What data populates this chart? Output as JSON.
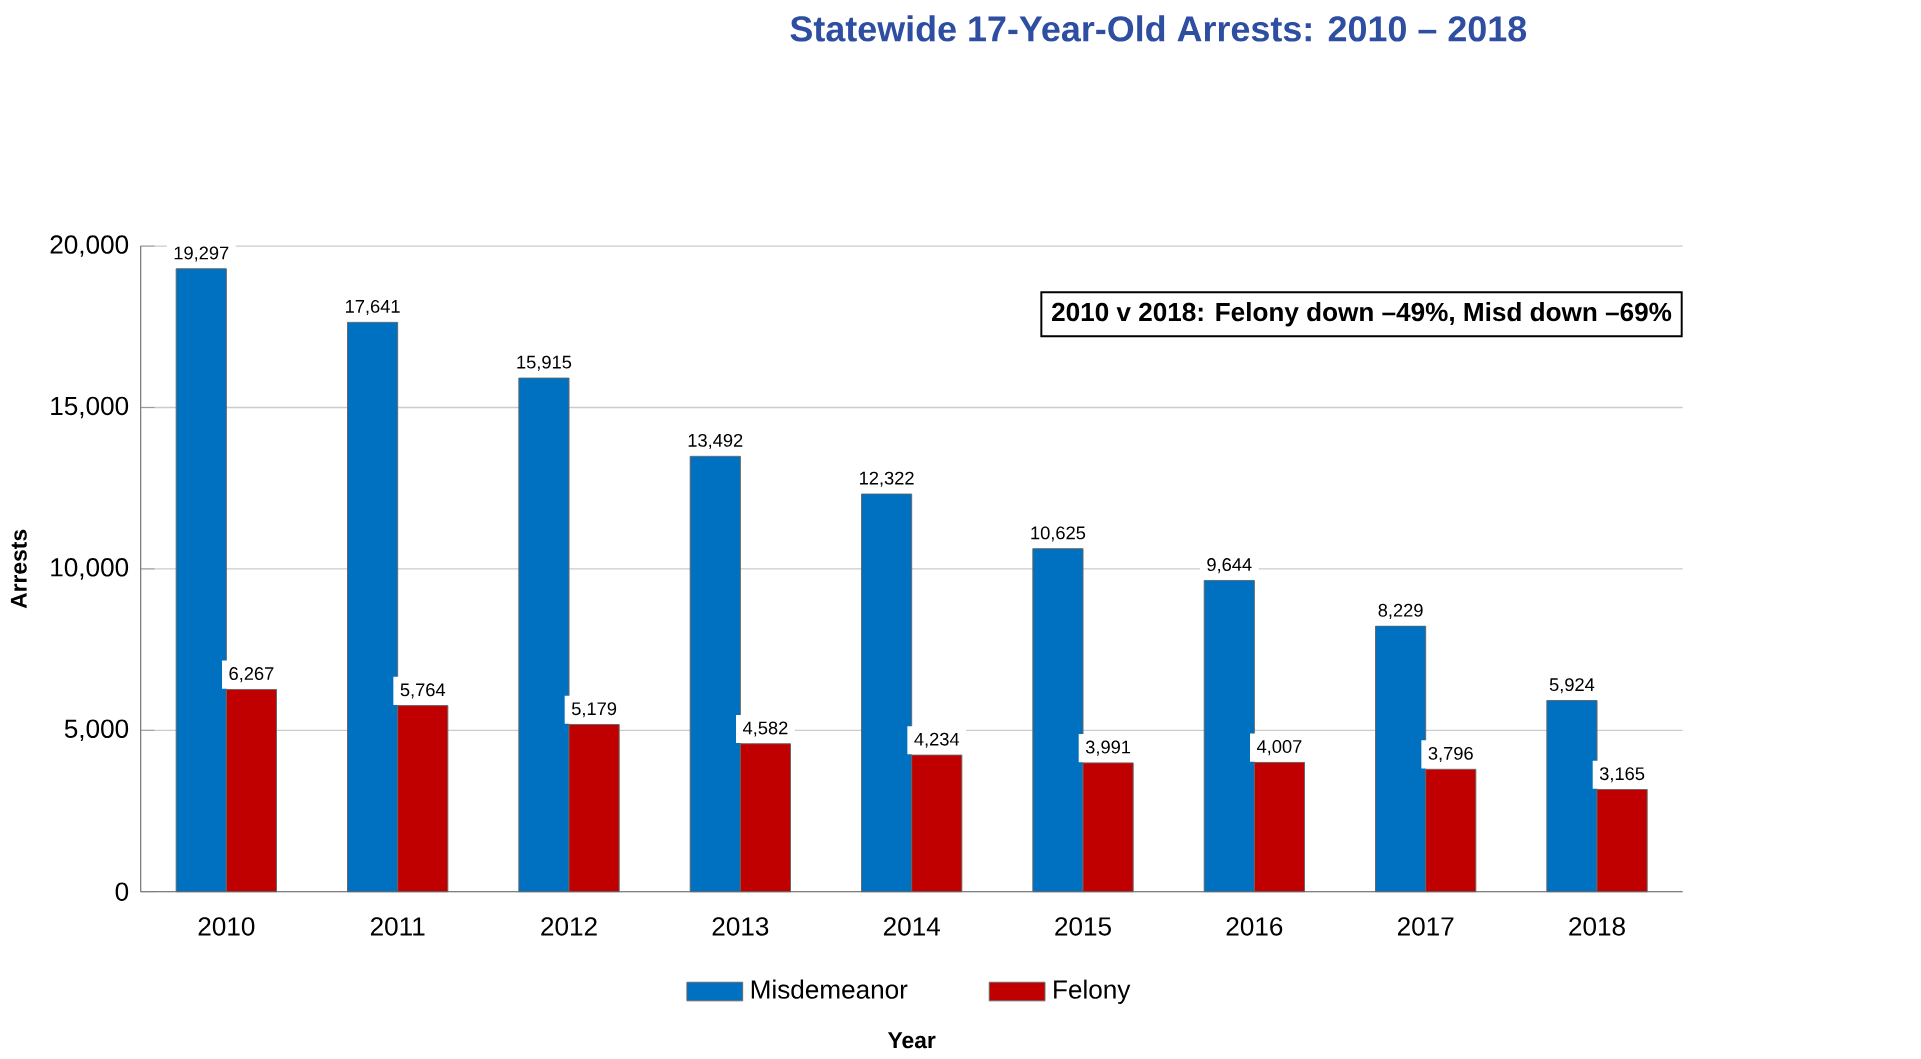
{
  "chart_data": {
    "type": "bar",
    "title": "Statewide 17-Year-Old Arrests: 2010 – 2018",
    "xlabel": "Year",
    "ylabel": "Arrests",
    "categories": [
      "2010",
      "2011",
      "2012",
      "2013",
      "2014",
      "2015",
      "2016",
      "2017",
      "2018"
    ],
    "series": [
      {
        "name": "Misdemeanor",
        "color": "#0070c0",
        "values": [
          19297,
          17641,
          15915,
          13492,
          12322,
          10625,
          9644,
          8229,
          5924
        ],
        "value_labels": [
          "19,297",
          "17,641",
          "15,915",
          "13,492",
          "12,322",
          "10,625",
          "9,644",
          "8,229",
          "5,924"
        ]
      },
      {
        "name": "Felony",
        "color": "#c00000",
        "values": [
          6267,
          5764,
          5179,
          4582,
          4234,
          3991,
          4007,
          3796,
          3165
        ],
        "value_labels": [
          "6,267",
          "5,764",
          "5,179",
          "4,582",
          "4,234",
          "3,991",
          "4,007",
          "3,796",
          "3,165"
        ]
      }
    ],
    "ylim": [
      0,
      20000
    ],
    "yticks": [
      0,
      {
        "value": 5000,
        "label": "5,000"
      },
      {
        "value": 10000,
        "label": "10,000"
      },
      {
        "value": 15000,
        "label": "15,000"
      },
      {
        "value": 20000,
        "label": "20,000"
      }
    ],
    "grid": "y",
    "legend": "bottom",
    "annotations": [
      "2010 v 2018: Felony down –49%, Misd down –69%"
    ]
  }
}
